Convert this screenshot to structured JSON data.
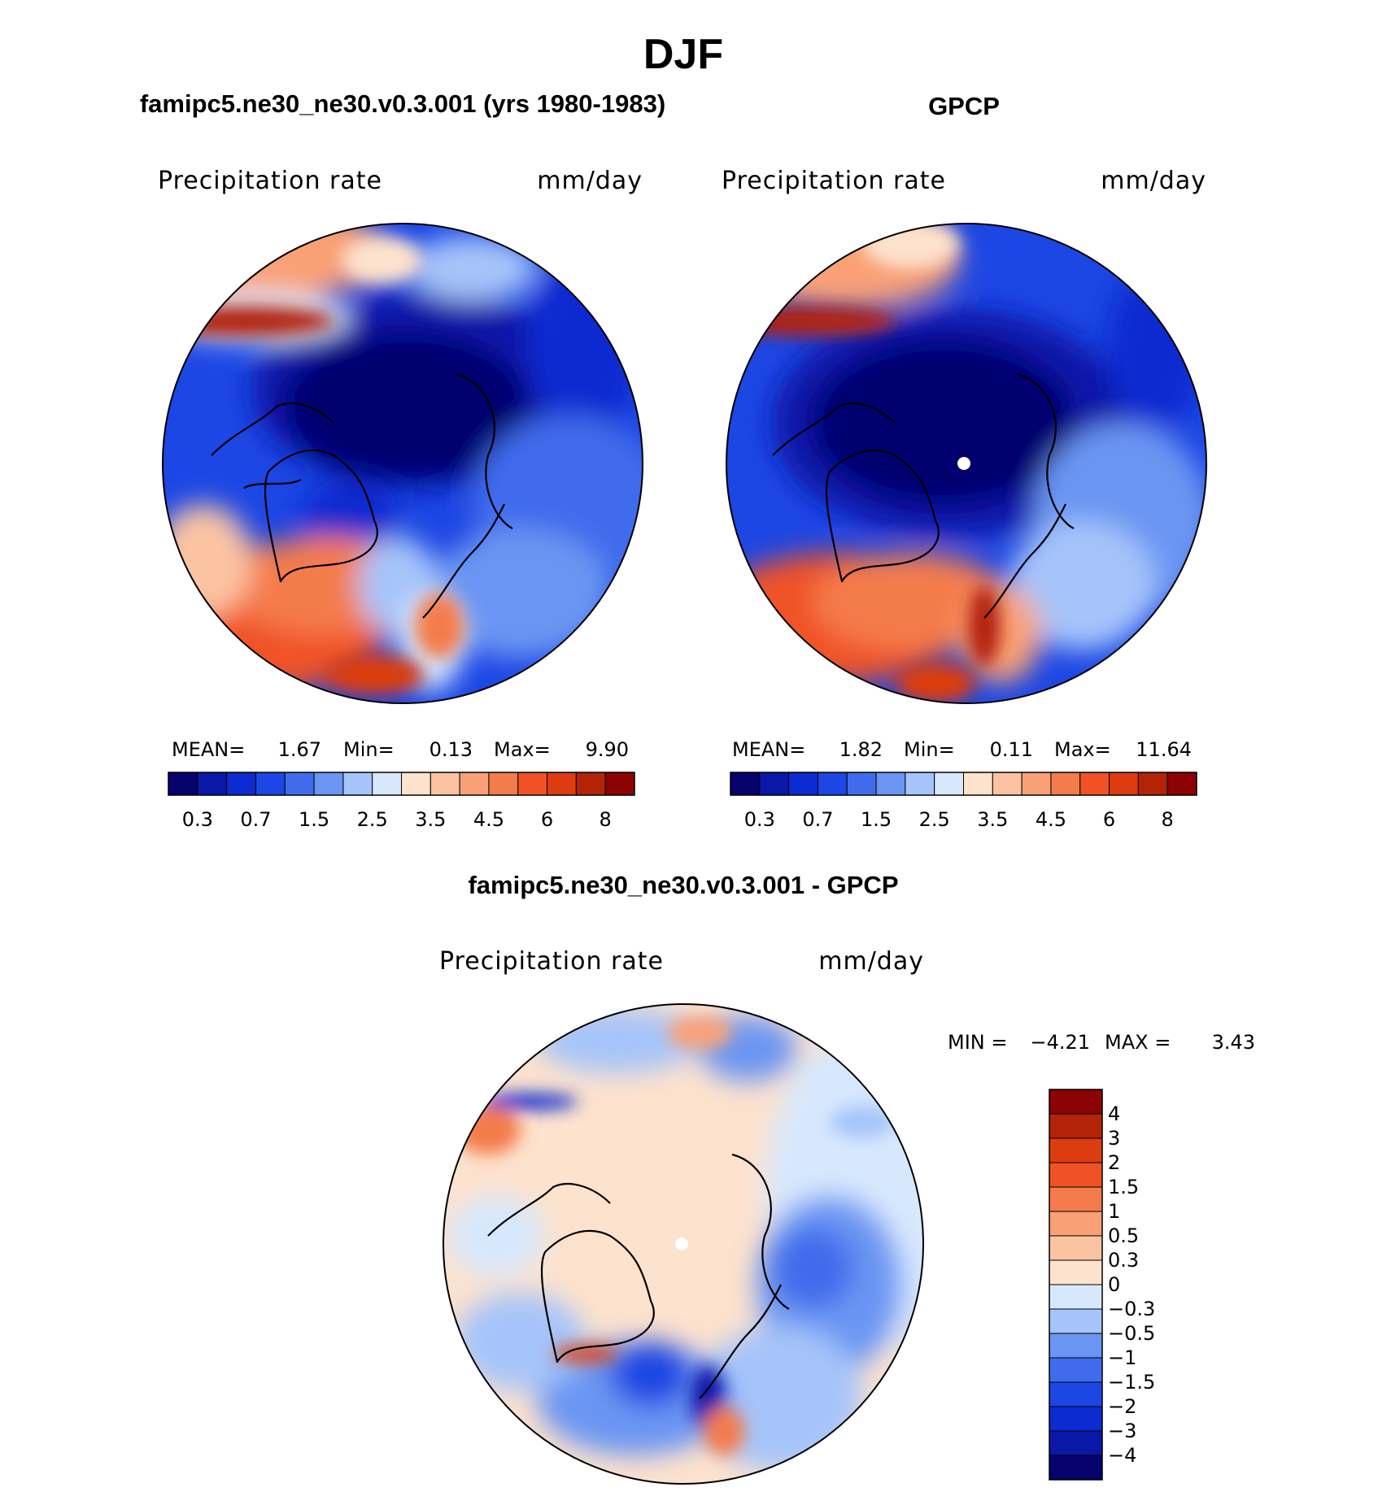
{
  "figure": {
    "season": "DJF",
    "left_title": "famipc5.ne30_ne30.v0.3.001 (yrs 1980-1983)",
    "right_title": "GPCP",
    "diff_title": "famipc5.ne30_ne30.v0.3.001 - GPCP"
  },
  "panels": [
    {
      "id": "model",
      "variable": "Precipitation rate",
      "units": "mm/day",
      "stats": {
        "mean_label": "MEAN=",
        "mean": "1.67",
        "min_label": "Min=",
        "min": "0.13",
        "max_label": "Max=",
        "max": "9.90"
      }
    },
    {
      "id": "obs",
      "variable": "Precipitation rate",
      "units": "mm/day",
      "stats": {
        "mean_label": "MEAN=",
        "mean": "1.82",
        "min_label": "Min=",
        "min": "0.11",
        "max_label": "Max=",
        "max": "11.64"
      }
    },
    {
      "id": "diff",
      "variable": "Precipitation rate",
      "units": "mm/day",
      "stats": {
        "min_label": "MIN =",
        "min": "−4.21",
        "max_label": "MAX =",
        "max": "3.43"
      }
    }
  ],
  "chart_data": [
    {
      "type": "heatmap",
      "projection": "north-polar-stereographic",
      "title": "famipc5.ne30_ne30.v0.3.001 (yrs 1980-1983)",
      "variable": "Precipitation rate",
      "units": "mm/day",
      "mean": 1.67,
      "min": 0.13,
      "max": 9.9,
      "colorbar": {
        "orientation": "horizontal",
        "levels": [
          0.2,
          0.3,
          0.5,
          0.7,
          1,
          1.5,
          2,
          2.5,
          3,
          3.5,
          4,
          4.5,
          5,
          6,
          7,
          8
        ],
        "tick_labels": [
          "0.3",
          "0.7",
          "1.5",
          "2.5",
          "3.5",
          "4.5",
          "6",
          "8"
        ],
        "colors": [
          "#06036e",
          "#0a18a8",
          "#0c2bd0",
          "#1c47e4",
          "#3f6cec",
          "#6b95f2",
          "#a5c4f9",
          "#d7e8fd",
          "#fde2cd",
          "#fbc3a2",
          "#f9a076",
          "#f47b4c",
          "#f05226",
          "#dc3c10",
          "#b32308",
          "#8b0305"
        ]
      },
      "regions": {
        "central_arctic": "very low (0.2–0.5)",
        "eurasian_arctic_and_siberia": "low (0.5–1.5)",
        "north_atlantic": "high (4–7)",
        "north_pacific_gulf_of_alaska": "high (5–8)",
        "northern_europe": "moderate (2–3)"
      }
    },
    {
      "type": "heatmap",
      "projection": "north-polar-stereographic",
      "title": "GPCP",
      "variable": "Precipitation rate",
      "units": "mm/day",
      "mean": 1.82,
      "min": 0.11,
      "max": 11.64,
      "colorbar": {
        "orientation": "horizontal",
        "levels": [
          0.2,
          0.3,
          0.5,
          0.7,
          1,
          1.5,
          2,
          2.5,
          3,
          3.5,
          4,
          4.5,
          5,
          6,
          7,
          8
        ],
        "tick_labels": [
          "0.3",
          "0.7",
          "1.5",
          "2.5",
          "3.5",
          "4.5",
          "6",
          "8"
        ],
        "colors": [
          "#06036e",
          "#0a18a8",
          "#0c2bd0",
          "#1c47e4",
          "#3f6cec",
          "#6b95f2",
          "#a5c4f9",
          "#d7e8fd",
          "#fde2cd",
          "#fbc3a2",
          "#f9a076",
          "#f47b4c",
          "#f05226",
          "#dc3c10",
          "#b32308",
          "#8b0305"
        ]
      },
      "regions": {
        "central_arctic": "very low (0.1–0.3), missing value at pole",
        "north_atlantic": "high (4–8)",
        "north_pacific_gulf_of_alaska": "high (5–10)",
        "northern_europe": "moderate (2–3)"
      }
    },
    {
      "type": "heatmap",
      "projection": "north-polar-stereographic",
      "title": "famipc5.ne30_ne30.v0.3.001 - GPCP",
      "variable": "Precipitation rate",
      "units": "mm/day",
      "min": -4.21,
      "max": 3.43,
      "colorbar": {
        "orientation": "vertical",
        "tick_labels": [
          "4",
          "3",
          "2",
          "1.5",
          "1",
          "0.5",
          "0.3",
          "0",
          "−0.3",
          "−0.5",
          "−1",
          "−1.5",
          "−2",
          "−3",
          "−4"
        ],
        "colors": [
          "#8b0305",
          "#b32308",
          "#dc3c10",
          "#f05226",
          "#f47b4c",
          "#f9a076",
          "#fbc3a2",
          "#fde2cd",
          "#d7e8fd",
          "#a5c4f9",
          "#6b95f2",
          "#3f6cec",
          "#1c47e4",
          "#0c2bd0",
          "#0a18a8",
          "#06036e"
        ]
      },
      "regions": {
        "central_arctic": "small positive (0 to 0.3)",
        "north_atlantic_iceland": "negative (−1 to −3)",
        "norwegian_coast": "mixed −4 to +1",
        "north_pacific": "mostly negative (−0.3 to −1.5)",
        "eurasian_interior": "small negative (0 to −0.3)"
      }
    }
  ]
}
